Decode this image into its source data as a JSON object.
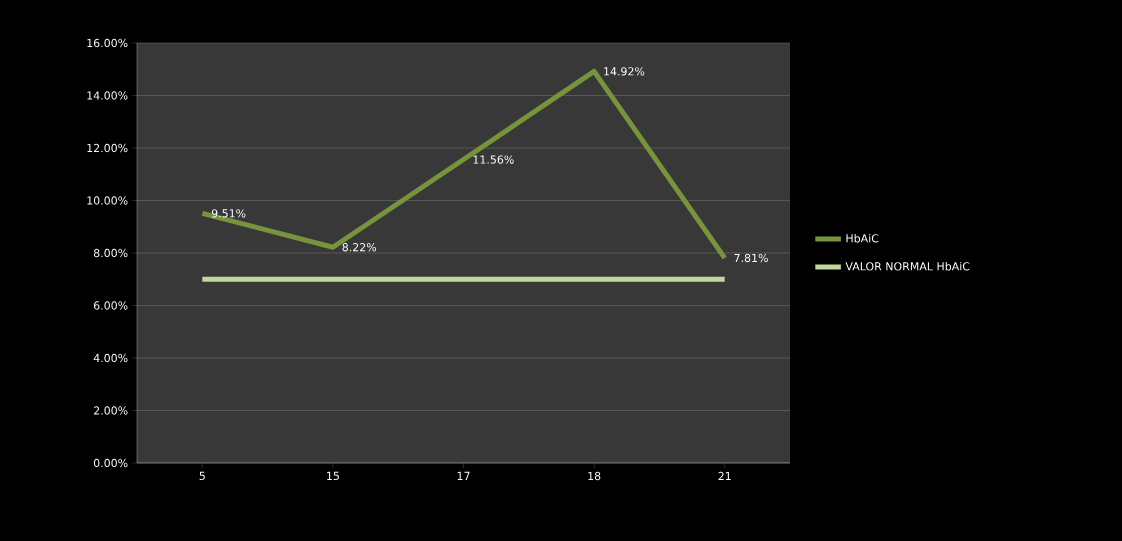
{
  "chart_data": {
    "type": "line",
    "categories": [
      "5",
      "15",
      "17",
      "18",
      "21"
    ],
    "series": [
      {
        "name": "HbAiC",
        "color": "#77933c",
        "values": [
          9.51,
          8.22,
          11.56,
          14.92,
          7.81
        ],
        "value_labels": [
          "9.51%",
          "8.22%",
          "11.56%",
          "14.92%",
          "7.81%"
        ]
      },
      {
        "name": "VALOR NORMAL HbAiC",
        "color": "#c3d69b",
        "values": [
          7,
          7,
          7,
          7,
          7
        ]
      }
    ],
    "ylim": [
      0,
      16
    ],
    "yticks": [
      {
        "value": 0,
        "label": "0.00%"
      },
      {
        "value": 2,
        "label": "2.00%"
      },
      {
        "value": 4,
        "label": "4.00%"
      },
      {
        "value": 6,
        "label": "6.00%"
      },
      {
        "value": 8,
        "label": "8.00%"
      },
      {
        "value": 10,
        "label": "10.00%"
      },
      {
        "value": 12,
        "label": "12.00%"
      },
      {
        "value": 14,
        "label": "14.00%"
      },
      {
        "value": 16,
        "label": "16.00%"
      }
    ],
    "grid": "y",
    "legend": "right"
  }
}
